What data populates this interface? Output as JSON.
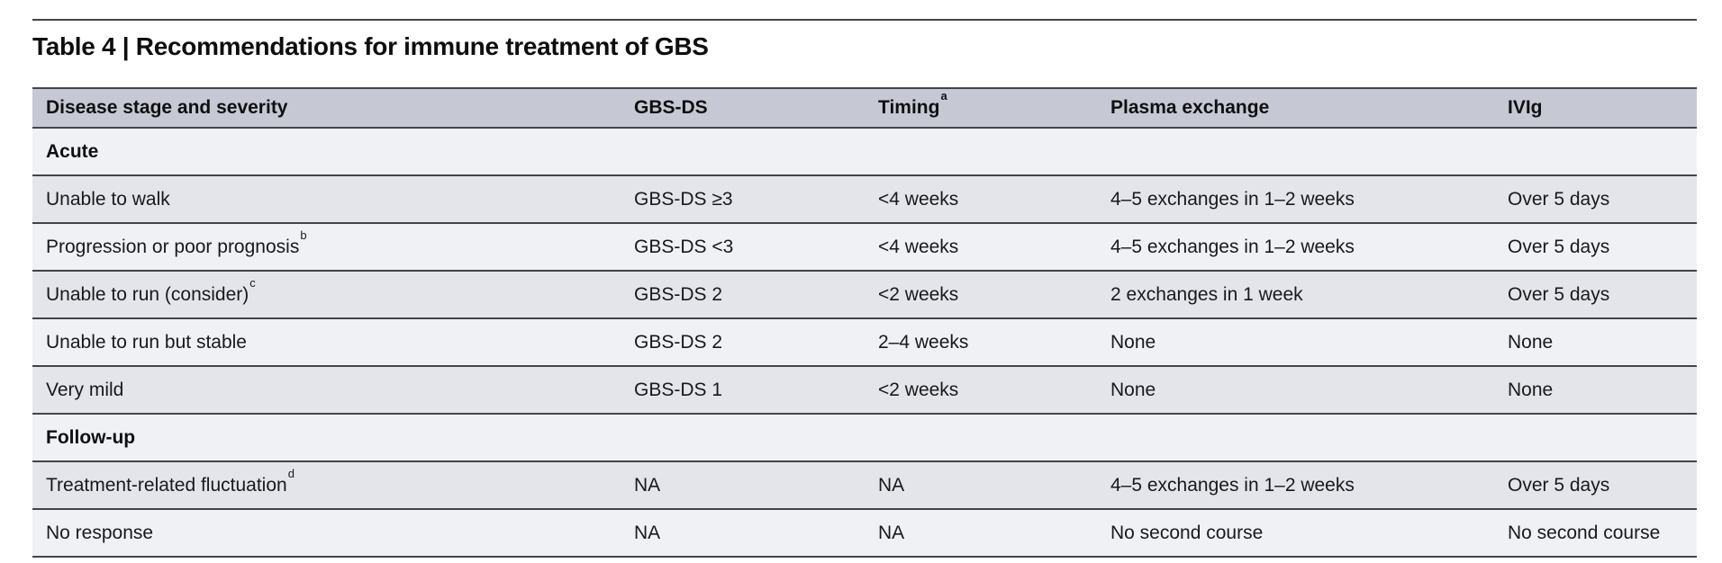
{
  "colors": {
    "rule": "#43434b",
    "header-bg": "#c6c9d3",
    "row-light": "#f0f1f5",
    "row-dark": "#e4e5ea",
    "text": "#151518",
    "page-bg": "#ffffff"
  },
  "table": {
    "title": "Table 4 | Recommendations for immune treatment of GBS",
    "columns": [
      {
        "label": "Disease stage and severity",
        "sup": ""
      },
      {
        "label": "GBS-DS",
        "sup": ""
      },
      {
        "label": "Timing",
        "sup": "a"
      },
      {
        "label": "Plasma exchange",
        "sup": ""
      },
      {
        "label": "IVIg",
        "sup": ""
      }
    ],
    "rows": [
      {
        "type": "section",
        "cells": [
          {
            "text": "Acute",
            "sup": ""
          }
        ]
      },
      {
        "type": "data",
        "cells": [
          {
            "text": "Unable to walk",
            "sup": ""
          },
          {
            "text": "GBS-DS ≥3",
            "sup": ""
          },
          {
            "text": "<4 weeks",
            "sup": ""
          },
          {
            "text": "4–5 exchanges in 1–2 weeks",
            "sup": ""
          },
          {
            "text": "Over 5 days",
            "sup": ""
          }
        ]
      },
      {
        "type": "data",
        "cells": [
          {
            "text": "Progression or poor prognosis",
            "sup": "b"
          },
          {
            "text": "GBS-DS <3",
            "sup": ""
          },
          {
            "text": "<4 weeks",
            "sup": ""
          },
          {
            "text": "4–5 exchanges in 1–2 weeks",
            "sup": ""
          },
          {
            "text": "Over 5 days",
            "sup": ""
          }
        ]
      },
      {
        "type": "data",
        "cells": [
          {
            "text": "Unable to run (consider)",
            "sup": "c"
          },
          {
            "text": "GBS-DS 2",
            "sup": ""
          },
          {
            "text": "<2 weeks",
            "sup": ""
          },
          {
            "text": "2 exchanges in 1 week",
            "sup": ""
          },
          {
            "text": "Over 5 days",
            "sup": ""
          }
        ]
      },
      {
        "type": "data",
        "cells": [
          {
            "text": "Unable to run but stable",
            "sup": ""
          },
          {
            "text": "GBS-DS 2",
            "sup": ""
          },
          {
            "text": "2–4 weeks",
            "sup": ""
          },
          {
            "text": "None",
            "sup": ""
          },
          {
            "text": "None",
            "sup": ""
          }
        ]
      },
      {
        "type": "data",
        "cells": [
          {
            "text": "Very mild",
            "sup": ""
          },
          {
            "text": "GBS-DS 1",
            "sup": ""
          },
          {
            "text": "<2 weeks",
            "sup": ""
          },
          {
            "text": "None",
            "sup": ""
          },
          {
            "text": "None",
            "sup": ""
          }
        ]
      },
      {
        "type": "section",
        "cells": [
          {
            "text": "Follow-up",
            "sup": ""
          }
        ]
      },
      {
        "type": "data",
        "cells": [
          {
            "text": "Treatment-related fluctuation",
            "sup": "d"
          },
          {
            "text": "NA",
            "sup": ""
          },
          {
            "text": "NA",
            "sup": ""
          },
          {
            "text": "4–5 exchanges in 1–2 weeks",
            "sup": ""
          },
          {
            "text": "Over 5 days",
            "sup": ""
          }
        ]
      },
      {
        "type": "data",
        "cells": [
          {
            "text": "No response",
            "sup": ""
          },
          {
            "text": "NA",
            "sup": ""
          },
          {
            "text": "NA",
            "sup": ""
          },
          {
            "text": "No second course",
            "sup": ""
          },
          {
            "text": "No second course",
            "sup": ""
          }
        ]
      }
    ]
  }
}
